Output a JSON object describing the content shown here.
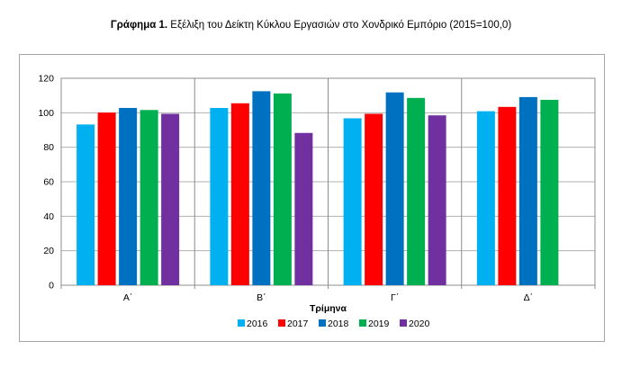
{
  "title": {
    "prefix": "Γράφημα 1.",
    "text": "Εξέλιξη του Δείκτη Κύκλου Εργασιών στο Χονδρικό Εμπόριο (2015=100,0)"
  },
  "chart_data": {
    "type": "bar",
    "categories": [
      "Α΄",
      "Β΄",
      "Γ΄",
      "Δ΄"
    ],
    "xlabel": "Τρίμηνα",
    "ylabel": "",
    "ylim": [
      0,
      120
    ],
    "yticks": [
      0,
      20,
      40,
      60,
      80,
      100,
      120
    ],
    "grid": true,
    "legend_position": "bottom",
    "series": [
      {
        "name": "2016",
        "color": "#00b0f0",
        "values": [
          93.2,
          102.8,
          96.8,
          100.9
        ]
      },
      {
        "name": "2017",
        "color": "#ff0000",
        "values": [
          100.1,
          105.5,
          99.4,
          103.4
        ]
      },
      {
        "name": "2018",
        "color": "#0070c0",
        "values": [
          102.8,
          112.5,
          111.8,
          109.1
        ]
      },
      {
        "name": "2019",
        "color": "#00b050",
        "values": [
          101.6,
          111.2,
          108.6,
          107.5
        ]
      },
      {
        "name": "2020",
        "color": "#7030a0",
        "values": [
          99.4,
          88.3,
          98.5,
          null
        ]
      }
    ]
  }
}
